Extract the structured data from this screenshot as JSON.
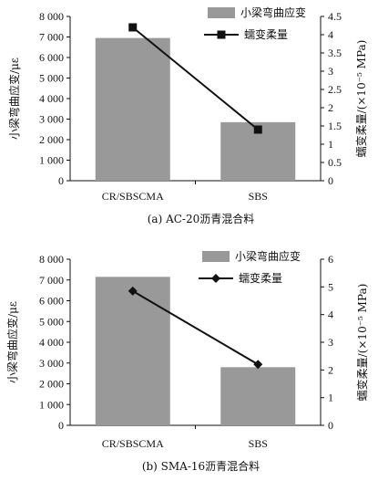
{
  "chart_data": [
    {
      "type": "bar",
      "caption": "(a) AC-20沥青混合料",
      "categories": [
        "CR/SBSCMA",
        "SBS"
      ],
      "series": [
        {
          "name": "小梁弯曲应变",
          "axis": "left",
          "kind": "bar",
          "values": [
            6950,
            2850
          ],
          "color": "#999999"
        },
        {
          "name": "蠕变柔量",
          "axis": "right",
          "kind": "line",
          "marker": "square",
          "values": [
            4.2,
            1.4
          ],
          "color": "#111111"
        }
      ],
      "ylabel_left": "小梁弯曲应变/με",
      "ylabel_right": "蠕变柔量/(×10⁻⁵ MPa)",
      "ylim_left": [
        0,
        8000
      ],
      "yticks_left": [
        "0",
        "1 000",
        "2 000",
        "3 000",
        "4 000",
        "5 000",
        "6 000",
        "7 000",
        "8 000"
      ],
      "ylim_right": [
        0,
        4.5
      ],
      "yticks_right": [
        "0",
        "0.5",
        "1",
        "1.5",
        "2",
        "2.5",
        "3",
        "3.5",
        "4",
        "4.5"
      ],
      "legend_position": "top-right",
      "grid": false
    },
    {
      "type": "bar",
      "caption": "(b) SMA-16沥青混合料",
      "categories": [
        "CR/SBSCMA",
        "SBS"
      ],
      "series": [
        {
          "name": "小梁弯曲应变",
          "axis": "left",
          "kind": "bar",
          "values": [
            7150,
            2800
          ],
          "color": "#999999"
        },
        {
          "name": "蠕变柔量",
          "axis": "right",
          "kind": "line",
          "marker": "diamond",
          "values": [
            4.85,
            2.2
          ],
          "color": "#111111"
        }
      ],
      "ylabel_left": "小梁弯曲应变/με",
      "ylabel_right": "蠕变柔量/(×10⁻⁵ MPa)",
      "ylim_left": [
        0,
        8000
      ],
      "yticks_left": [
        "0",
        "1 000",
        "2 000",
        "3 000",
        "4 000",
        "5 000",
        "6 000",
        "7 000",
        "8 000"
      ],
      "ylim_right": [
        0,
        6
      ],
      "yticks_right": [
        "0",
        "1",
        "2",
        "3",
        "4",
        "5",
        "6"
      ],
      "legend_position": "top-right",
      "grid": false
    }
  ]
}
